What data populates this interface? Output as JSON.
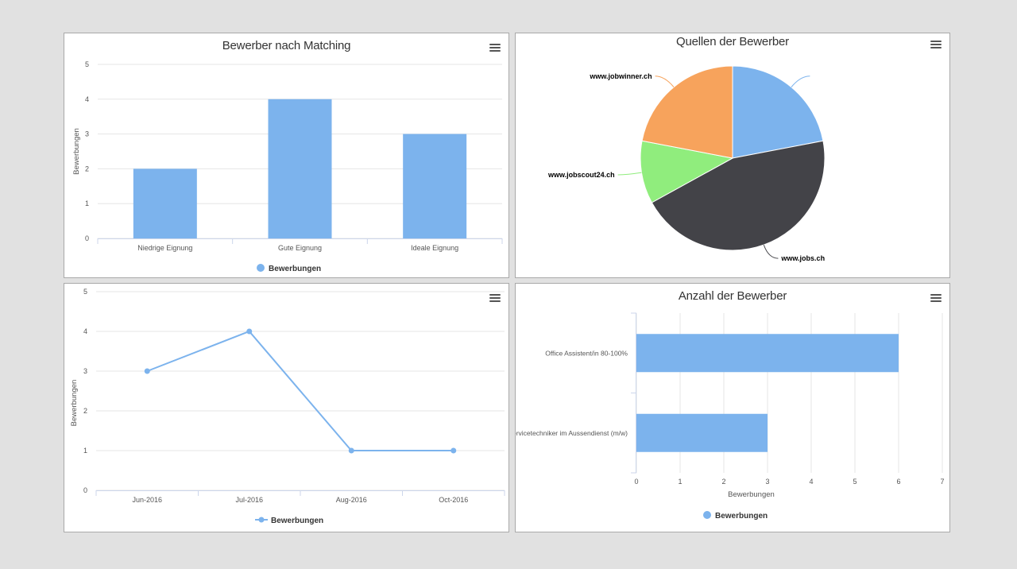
{
  "colors": {
    "bar": "#7cb3ed",
    "grid": "#e6e6e6",
    "axis_text": "#555555",
    "pie_blue": "#7cb3ed",
    "pie_dark": "#434348",
    "pie_green": "#90ed7d",
    "pie_orange": "#f7a35c"
  },
  "menu_icon": "hamburger-menu-icon",
  "chart_data": [
    {
      "type": "bar",
      "title": "Bewerber nach Matching",
      "categories": [
        "Niedrige Eignung",
        "Gute Eignung",
        "Ideale Eignung"
      ],
      "series": [
        {
          "name": "Bewerbungen",
          "values": [
            2,
            4,
            3
          ]
        }
      ],
      "ylabel": "Bewerbungen",
      "xlabel": "",
      "ylim": [
        0,
        5
      ],
      "yticks": [
        "0",
        "1",
        "2",
        "3",
        "4",
        "5"
      ],
      "grid": true,
      "legend": "bottom-center"
    },
    {
      "type": "pie",
      "title": "Quellen der Bewerber",
      "slices": [
        {
          "label": "",
          "value": 22
        },
        {
          "label": "www.jobs.ch",
          "value": 45
        },
        {
          "label": "www.jobscout24.ch",
          "value": 11
        },
        {
          "label": "www.jobwinner.ch",
          "value": 22
        }
      ],
      "legend": "none"
    },
    {
      "type": "line",
      "title": "",
      "x": [
        "Jun-2016",
        "Jul-2016",
        "Aug-2016",
        "Oct-2016"
      ],
      "series": [
        {
          "name": "Bewerbungen",
          "values": [
            3,
            4,
            1,
            1
          ]
        }
      ],
      "ylabel": "Bewerbungen",
      "xlabel": "",
      "ylim": [
        0,
        5
      ],
      "yticks": [
        "0",
        "1",
        "2",
        "3",
        "4",
        "5"
      ],
      "grid": true,
      "legend": "bottom-center"
    },
    {
      "type": "bar",
      "orientation": "horizontal",
      "title": "Anzahl der Bewerber",
      "categories": [
        "Office Assistent/in 80-100%",
        "Servicetechniker im Aussendienst (m/w)"
      ],
      "series": [
        {
          "name": "Bewerbungen",
          "values": [
            6,
            3
          ]
        }
      ],
      "xlabel": "Bewerbungen",
      "ylabel": "",
      "xlim": [
        0,
        7
      ],
      "xticks": [
        "0",
        "1",
        "2",
        "3",
        "4",
        "5",
        "6",
        "7"
      ],
      "grid": true,
      "legend": "bottom-center"
    }
  ]
}
